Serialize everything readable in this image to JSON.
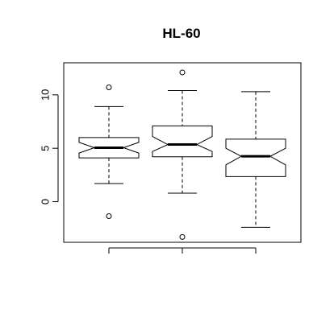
{
  "chart_data": {
    "type": "boxplot",
    "title": "HL-60",
    "xlabel": "",
    "ylabel": "",
    "ylim": [
      -3.8,
      13.0
    ],
    "yticks": [
      "0",
      "5",
      "10"
    ],
    "ytick_values": [
      0,
      5,
      10
    ],
    "notched": true,
    "grid": false,
    "boxes": [
      {
        "whisker_low": 1.7,
        "q1": 4.1,
        "median": 5.05,
        "q3": 6.0,
        "whisker_high": 8.9,
        "notch_low": 4.55,
        "notch_high": 5.55,
        "outliers": [
          10.7,
          -1.35
        ]
      },
      {
        "whisker_low": 0.8,
        "q1": 4.2,
        "median": 5.35,
        "q3": 7.1,
        "whisker_high": 10.4,
        "notch_low": 4.7,
        "notch_high": 6.1,
        "outliers": [
          12.1,
          -3.3
        ]
      },
      {
        "whisker_low": -2.4,
        "q1": 2.35,
        "median": 4.25,
        "q3": 5.85,
        "whisker_high": 10.3,
        "notch_low": 3.45,
        "notch_high": 5.0,
        "outliers": []
      }
    ]
  }
}
